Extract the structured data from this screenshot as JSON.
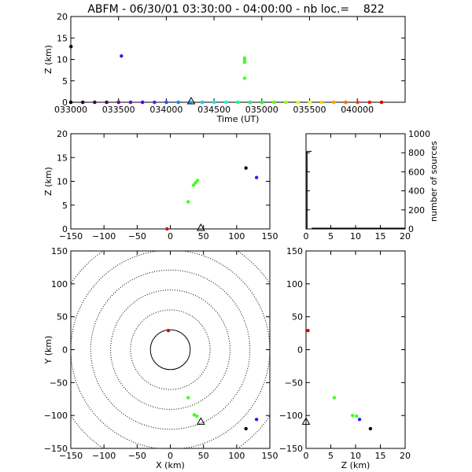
{
  "title": "ABFM - 06/30/01 03:30:00 - 04:00:00 - nb loc.=    822",
  "chart_data": [
    {
      "id": "time_height",
      "type": "scatter",
      "xlabel": "Time (UT)",
      "ylabel": "Z (km)",
      "xlim": [
        33000,
        40000
      ],
      "ylim": [
        0,
        20
      ],
      "xticks": [
        33000,
        33500,
        34000,
        34500,
        35000,
        35500,
        40000
      ],
      "xtick_labels": [
        "033000",
        "033500",
        "034000",
        "034500",
        "035000",
        "035500",
        "040000"
      ],
      "yticks": [
        0,
        5,
        10,
        15,
        20
      ],
      "points": [
        {
          "x": 33002,
          "y": 13.0,
          "color": "#000000"
        },
        {
          "x": 33530,
          "y": 10.8,
          "color": "#3020e0"
        },
        {
          "x": 34820,
          "y": 10.3,
          "color": "#40ff20"
        },
        {
          "x": 34820,
          "y": 9.8,
          "color": "#40ff20"
        },
        {
          "x": 34820,
          "y": 9.3,
          "color": "#40ff20"
        },
        {
          "x": 34820,
          "y": 5.6,
          "color": "#40ff20"
        }
      ],
      "time_scale_colors": [
        "#000000",
        "#200030",
        "#400050",
        "#500070",
        "#7000a0",
        "#7000d0",
        "#5000ff",
        "#3030ff",
        "#0060ff",
        "#0090ff",
        "#00b0ff",
        "#00d0ff",
        "#00f0f0",
        "#00ffc0",
        "#00ff90",
        "#00ff60",
        "#20ff20",
        "#60ff00",
        "#a0ff00",
        "#d0ff00",
        "#ffff00",
        "#ffd000",
        "#ffa000",
        "#ff7000",
        "#ff4000",
        "#ff1000",
        "#e00000"
      ],
      "marker": {
        "x": 34260,
        "y": 0
      }
    },
    {
      "id": "x_height",
      "type": "scatter",
      "xlabel": "",
      "ylabel": "Z (km)",
      "xlim": [
        -150,
        150
      ],
      "ylim": [
        0,
        20
      ],
      "xticks": [
        -150,
        -100,
        -50,
        0,
        50,
        100,
        150
      ],
      "yticks": [
        0,
        5,
        10,
        15,
        20
      ],
      "points": [
        {
          "x": -5,
          "y": 0,
          "color": "#e00000"
        },
        {
          "x": 27,
          "y": 5.7,
          "color": "#40ff20"
        },
        {
          "x": 35,
          "y": 9.2,
          "color": "#40ff20"
        },
        {
          "x": 38,
          "y": 9.7,
          "color": "#40ff20"
        },
        {
          "x": 41,
          "y": 10.2,
          "color": "#40ff20"
        },
        {
          "x": 114,
          "y": 12.8,
          "color": "#000000"
        },
        {
          "x": 130,
          "y": 10.8,
          "color": "#3020e0"
        }
      ],
      "marker": {
        "x": 46,
        "y": 0
      }
    },
    {
      "id": "height_histogram",
      "type": "bar",
      "xlabel": "",
      "ylabel": "number of sources",
      "xlim": [
        0,
        20
      ],
      "ylim": [
        0,
        1000
      ],
      "xticks": [
        0,
        5,
        10,
        15,
        20
      ],
      "yticks": [
        0,
        200,
        400,
        600,
        800,
        1000
      ],
      "bins": [
        {
          "x": 0.2,
          "value": 815
        }
      ]
    },
    {
      "id": "plan_view",
      "type": "scatter",
      "xlabel": "X (km)",
      "ylabel": "Y (km)",
      "xlim": [
        -150,
        150
      ],
      "ylim": [
        -150,
        150
      ],
      "xticks": [
        -150,
        -100,
        -50,
        0,
        50,
        100,
        150
      ],
      "yticks": [
        -150,
        -100,
        -50,
        0,
        50,
        100,
        150
      ],
      "range_rings": [
        30,
        60,
        90,
        120,
        150,
        180
      ],
      "points": [
        {
          "x": -3,
          "y": 29,
          "color": "#e00000"
        },
        {
          "x": 27,
          "y": -73,
          "color": "#40ff20"
        },
        {
          "x": 36,
          "y": -99,
          "color": "#40ff20"
        },
        {
          "x": 40,
          "y": -101,
          "color": "#40ff20"
        },
        {
          "x": 114,
          "y": -120,
          "color": "#000000"
        },
        {
          "x": 130,
          "y": -106,
          "color": "#3020e0"
        }
      ],
      "marker": {
        "x": 46,
        "y": -111
      }
    },
    {
      "id": "height_y",
      "type": "scatter",
      "xlabel": "Z (km)",
      "ylabel": "",
      "xlim": [
        0,
        20
      ],
      "ylim": [
        -150,
        150
      ],
      "xticks": [
        0,
        5,
        10,
        15,
        20
      ],
      "yticks": [
        -150,
        -100,
        -50,
        0,
        50,
        100,
        150
      ],
      "points": [
        {
          "x": 0.4,
          "y": 29,
          "color": "#e00000"
        },
        {
          "x": 5.7,
          "y": -73,
          "color": "#40ff20"
        },
        {
          "x": 9.4,
          "y": -100,
          "color": "#40ff20"
        },
        {
          "x": 10.2,
          "y": -101,
          "color": "#40ff20"
        },
        {
          "x": 10.8,
          "y": -106,
          "color": "#3020e0"
        },
        {
          "x": 13.0,
          "y": -120,
          "color": "#000000"
        }
      ],
      "marker": {
        "x": 0,
        "y": -111
      }
    }
  ]
}
